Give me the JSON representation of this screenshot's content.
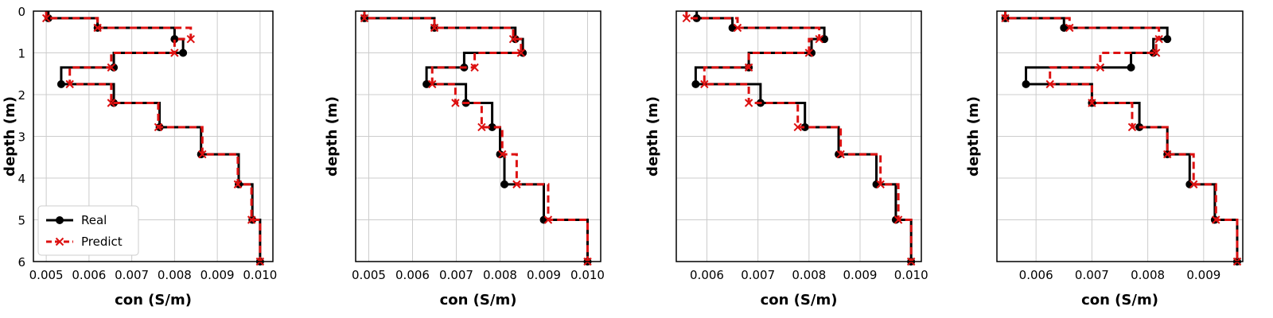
{
  "chart_data": [
    {
      "type": "line",
      "step": "profile",
      "xlabel": "con (S/m)",
      "ylabel": "depth (m)",
      "ylim": [
        0,
        6
      ],
      "y_inverted": true,
      "xlim": [
        0.0047,
        0.0103
      ],
      "xticks": [
        "0.005",
        "0.006",
        "0.007",
        "0.008",
        "0.009",
        "0.010"
      ],
      "xtick_values": [
        0.005,
        0.006,
        0.007,
        0.008,
        0.009,
        0.01
      ],
      "yticks": [
        "0",
        "1",
        "2",
        "3",
        "4",
        "5",
        "6"
      ],
      "ytick_values": [
        0,
        1,
        2,
        3,
        4,
        5,
        6
      ],
      "grid": true,
      "legend": {
        "position": "bottom-left",
        "entries": [
          "Real",
          "Predict"
        ]
      },
      "boundaries": [
        0,
        0.17,
        0.4,
        0.67,
        1.0,
        1.35,
        1.75,
        2.2,
        2.78,
        3.43,
        4.15,
        5.0,
        6.0
      ],
      "series": [
        {
          "name": "Real",
          "color": "#000000",
          "dash": "solid",
          "marker": "circle",
          "values": [
            0.00505,
            0.0062,
            0.008,
            0.0082,
            0.00658,
            0.00535,
            0.00658,
            0.00765,
            0.00862,
            0.0095,
            0.00982,
            0.01
          ]
        },
        {
          "name": "Predict",
          "color": "#dd1111",
          "dash": "dashed",
          "marker": "x",
          "values": [
            0.005,
            0.0062,
            0.00838,
            0.008,
            0.00652,
            0.00555,
            0.00652,
            0.00762,
            0.00865,
            0.00948,
            0.0098,
            0.01
          ]
        }
      ]
    },
    {
      "type": "line",
      "step": "profile",
      "xlabel": "con (S/m)",
      "ylabel": "depth (m)",
      "ylim": [
        0,
        6
      ],
      "y_inverted": true,
      "xlim": [
        0.0047,
        0.0103
      ],
      "xticks": [
        "0.005",
        "0.006",
        "0.007",
        "0.008",
        "0.009",
        "0.010"
      ],
      "xtick_values": [
        0.005,
        0.006,
        0.007,
        0.008,
        0.009,
        0.01
      ],
      "yticks": [],
      "ytick_values": [
        1,
        2,
        3,
        4,
        5
      ],
      "grid": true,
      "boundaries": [
        0,
        0.17,
        0.4,
        0.67,
        1.0,
        1.35,
        1.75,
        2.2,
        2.78,
        3.43,
        4.15,
        5.0,
        6.0
      ],
      "series": [
        {
          "name": "Real",
          "color": "#000000",
          "dash": "solid",
          "marker": "circle",
          "values": [
            0.0049,
            0.0065,
            0.00835,
            0.00852,
            0.00718,
            0.00632,
            0.00722,
            0.00782,
            0.008,
            0.0081,
            0.009,
            0.01
          ]
        },
        {
          "name": "Predict",
          "color": "#dd1111",
          "dash": "dashed",
          "marker": "x",
          "values": [
            0.0049,
            0.0065,
            0.0083,
            0.00848,
            0.00742,
            0.00645,
            0.00698,
            0.00758,
            0.00805,
            0.00838,
            0.0091,
            0.01
          ]
        }
      ]
    },
    {
      "type": "line",
      "step": "profile",
      "xlabel": "con (S/m)",
      "ylabel": "depth (m)",
      "ylim": [
        0,
        6
      ],
      "y_inverted": true,
      "xlim": [
        0.0054,
        0.0102
      ],
      "xticks": [
        "0.006",
        "0.007",
        "0.008",
        "0.009",
        "0.010"
      ],
      "xtick_values": [
        0.006,
        0.007,
        0.008,
        0.009,
        0.01
      ],
      "yticks": [],
      "ytick_values": [
        1,
        2,
        3,
        4,
        5
      ],
      "grid": true,
      "boundaries": [
        0,
        0.17,
        0.4,
        0.67,
        1.0,
        1.35,
        1.75,
        2.2,
        2.78,
        3.43,
        4.15,
        5.0,
        6.0
      ],
      "series": [
        {
          "name": "Real",
          "color": "#000000",
          "dash": "solid",
          "marker": "circle",
          "values": [
            0.0058,
            0.0065,
            0.0083,
            0.00805,
            0.00682,
            0.00578,
            0.00705,
            0.00792,
            0.00858,
            0.00932,
            0.0097,
            0.01
          ]
        },
        {
          "name": "Predict",
          "color": "#dd1111",
          "dash": "dashed",
          "marker": "x",
          "values": [
            0.0056,
            0.0066,
            0.0082,
            0.008,
            0.00682,
            0.00595,
            0.00682,
            0.00778,
            0.00862,
            0.0094,
            0.00975,
            0.01
          ]
        }
      ]
    },
    {
      "type": "line",
      "step": "profile",
      "xlabel": "con (S/m)",
      "ylabel": "depth (m)",
      "ylim": [
        0,
        6
      ],
      "y_inverted": true,
      "xlim": [
        0.0053,
        0.0097
      ],
      "xticks": [
        "0.006",
        "0.007",
        "0.008",
        "0.009"
      ],
      "xtick_values": [
        0.006,
        0.007,
        0.008,
        0.009
      ],
      "yticks": [],
      "ytick_values": [
        1,
        2,
        3,
        4,
        5
      ],
      "grid": true,
      "boundaries": [
        0,
        0.17,
        0.4,
        0.67,
        1.0,
        1.35,
        1.75,
        2.2,
        2.78,
        3.43,
        4.15,
        5.0,
        6.0
      ],
      "series": [
        {
          "name": "Real",
          "color": "#000000",
          "dash": "solid",
          "marker": "circle",
          "values": [
            0.00545,
            0.0065,
            0.00835,
            0.0081,
            0.0077,
            0.00582,
            0.007,
            0.00785,
            0.00835,
            0.00875,
            0.0092,
            0.0096
          ]
        },
        {
          "name": "Predict",
          "color": "#dd1111",
          "dash": "dashed",
          "marker": "x",
          "values": [
            0.00545,
            0.0066,
            0.0082,
            0.00815,
            0.00715,
            0.00625,
            0.007,
            0.00772,
            0.00835,
            0.00882,
            0.00922,
            0.0096
          ]
        }
      ]
    }
  ]
}
